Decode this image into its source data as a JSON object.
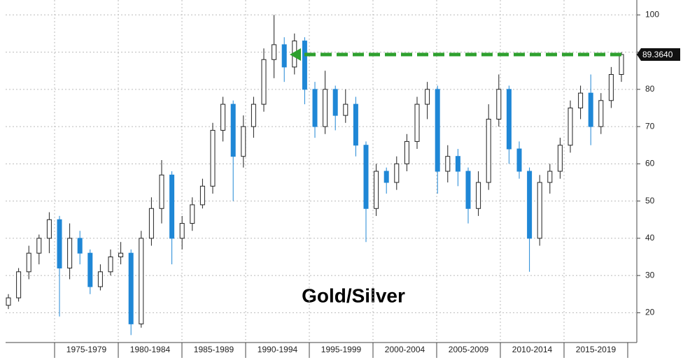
{
  "chart_data": {
    "type": "candlestick",
    "title": "Gold/Silver",
    "categories": [
      "1975-1979",
      "1980-1984",
      "1985-1989",
      "1990-1994",
      "1995-1999",
      "2000-2004",
      "2005-2009",
      "2010-2014",
      "2015-2019"
    ],
    "series": [
      {
        "name": "Gold/Silver",
        "up_color": "#ffffff",
        "down_color": "#1f87d6",
        "open": [
          22,
          24,
          31,
          36,
          40,
          45,
          32,
          40,
          36,
          27,
          31,
          35,
          36,
          17,
          40,
          48,
          57,
          40,
          44,
          49,
          54,
          69,
          76,
          62,
          70,
          76,
          88,
          92,
          86,
          93,
          80,
          70,
          80,
          73,
          76,
          65,
          48,
          58,
          55,
          60,
          66,
          76,
          80,
          58,
          62,
          58,
          48,
          55,
          72,
          80,
          64,
          58,
          40,
          55,
          58,
          65,
          75,
          79,
          70,
          77,
          84
        ],
        "high": [
          25,
          32,
          38,
          41,
          47,
          46,
          44,
          42,
          37,
          33,
          37,
          39,
          37,
          42,
          51,
          61,
          58,
          46,
          51,
          56,
          71,
          78,
          77,
          73,
          78,
          91,
          100,
          94,
          95,
          94,
          82,
          85,
          81,
          80,
          78,
          66,
          60,
          59,
          62,
          68,
          78,
          82,
          81,
          65,
          64,
          59,
          58,
          76,
          84,
          81,
          66,
          59,
          57,
          60,
          67,
          77,
          81,
          84,
          79,
          86,
          90
        ],
        "low": [
          21,
          23,
          29,
          33,
          36,
          19,
          29,
          33,
          25,
          26,
          30,
          33,
          14,
          16,
          38,
          44,
          33,
          37,
          42,
          48,
          52,
          66,
          50,
          59,
          67,
          74,
          83,
          82,
          84,
          76,
          67,
          68,
          69,
          71,
          62,
          39,
          46,
          52,
          53,
          58,
          64,
          72,
          52,
          55,
          54,
          44,
          46,
          53,
          70,
          60,
          56,
          31,
          38,
          52,
          56,
          63,
          72,
          65,
          68,
          75,
          82
        ],
        "close": [
          24,
          31,
          36,
          40,
          45,
          32,
          40,
          36,
          27,
          31,
          35,
          36,
          17,
          40,
          48,
          57,
          40,
          44,
          49,
          54,
          69,
          76,
          62,
          70,
          76,
          88,
          92,
          86,
          93,
          80,
          70,
          80,
          73,
          76,
          65,
          48,
          58,
          55,
          60,
          66,
          76,
          80,
          58,
          62,
          58,
          48,
          55,
          72,
          80,
          64,
          58,
          40,
          55,
          58,
          65,
          75,
          79,
          70,
          77,
          84,
          89.364
        ]
      }
    ],
    "last": {
      "value": 89.364,
      "label": "89.3640"
    },
    "arrow_color": "#2ea02e",
    "ylim": [
      12,
      104
    ],
    "yticks": [
      20,
      30,
      40,
      50,
      60,
      70,
      80,
      90,
      100
    ],
    "grid": true
  }
}
